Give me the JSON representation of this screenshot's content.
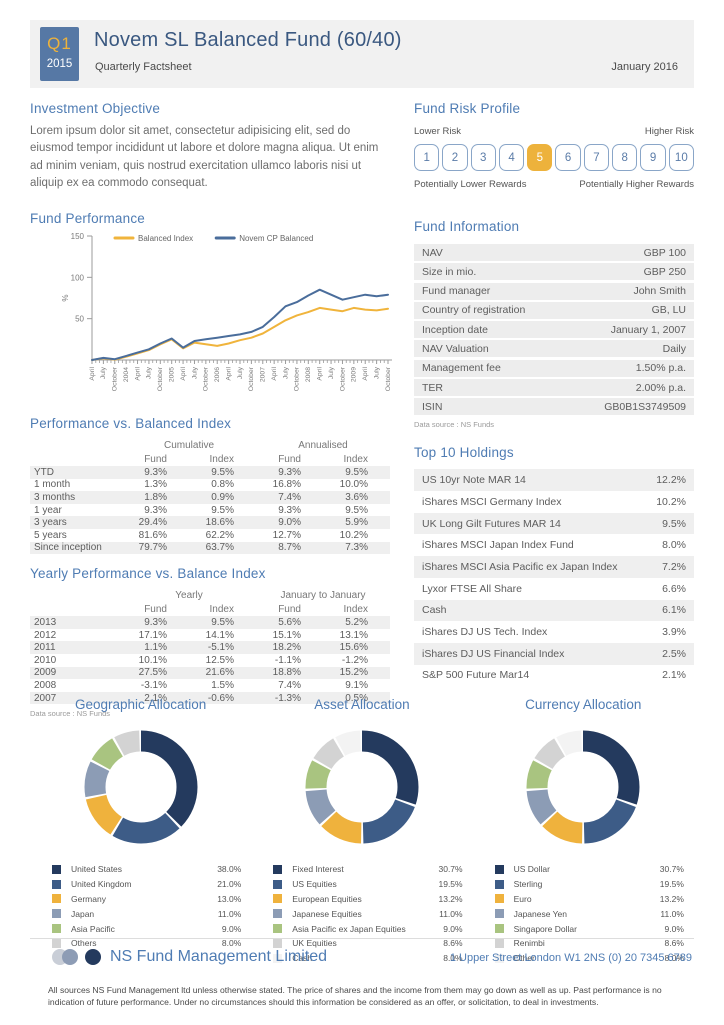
{
  "header": {
    "quarter": "Q1",
    "year": "2015",
    "title": "Novem SL Balanced Fund (60/40)",
    "subtitle": "Quarterly Factsheet",
    "date": "January 2016"
  },
  "investment_objective": {
    "heading": "Investment Objective",
    "text": "Lorem ipsum dolor sit amet, consectetur adipisicing elit, sed do eiusmod tempor incididunt ut labore et dolore magna aliqua. Ut enim ad minim veniam, quis nostrud exercitation ullamco laboris nisi ut aliquip ex ea commodo consequat."
  },
  "risk_profile": {
    "heading": "Fund Risk Profile",
    "lower_label": "Lower Risk",
    "higher_label": "Higher Risk",
    "levels": [
      "1",
      "2",
      "3",
      "4",
      "5",
      "6",
      "7",
      "8",
      "9",
      "10"
    ],
    "selected": "5",
    "lower_rewards": "Potentially Lower Rewards",
    "higher_rewards": "Potentially Higher Rewards"
  },
  "chart_data": {
    "type": "line",
    "title": "Fund Performance",
    "ylabel": "%",
    "ylim": [
      0,
      150
    ],
    "yticks": [
      50,
      100,
      150
    ],
    "grid": false,
    "legend_position": "top",
    "x": [
      "April",
      "July",
      "October",
      "2004",
      "April",
      "July",
      "October",
      "2005",
      "April",
      "July",
      "October",
      "2006",
      "April",
      "July",
      "October",
      "2007",
      "April",
      "July",
      "October",
      "2008",
      "April",
      "July",
      "October",
      "2009",
      "April",
      "July",
      "October"
    ],
    "series": [
      {
        "name": "Balanced Index",
        "color": "#f0b43c",
        "values": [
          0,
          2,
          0.5,
          4,
          8,
          12,
          19,
          25,
          14,
          21,
          19,
          17,
          20,
          24,
          27,
          32,
          40,
          48,
          54,
          58,
          63,
          61,
          59,
          63,
          61,
          60,
          62
        ]
      },
      {
        "name": "Novem CP Balanced",
        "color": "#4a6d9b",
        "values": [
          0,
          2.5,
          1,
          5,
          9,
          13,
          20,
          26,
          15,
          23,
          25,
          27,
          29,
          31,
          34,
          40,
          52,
          65,
          70,
          78,
          85,
          79,
          73,
          76,
          79,
          77,
          79
        ]
      }
    ]
  },
  "fund_information": {
    "heading": "Fund Information",
    "rows": [
      {
        "label": "NAV",
        "value": "GBP 100"
      },
      {
        "label": "Size in mio.",
        "value": "GBP 250"
      },
      {
        "label": "Fund manager",
        "value": "John Smith"
      },
      {
        "label": "Country of registration",
        "value": "GB, LU"
      },
      {
        "label": "Inception date",
        "value": "January 1, 2007"
      },
      {
        "label": "NAV Valuation",
        "value": "Daily"
      },
      {
        "label": "Management fee",
        "value": "1.50% p.a."
      },
      {
        "label": "TER",
        "value": "2.00% p.a."
      },
      {
        "label": "ISIN",
        "value": "GB0B1S3749509"
      }
    ],
    "source": "Data source : NS Funds"
  },
  "performance_table": {
    "heading": "Performance vs. Balanced Index",
    "group_headers": [
      "Cumulative",
      "Annualised"
    ],
    "col_headers": [
      "Fund",
      "Index",
      "Fund",
      "Index"
    ],
    "rows": [
      {
        "label": "YTD",
        "values": [
          "9.3%",
          "9.5%",
          "9.3%",
          "9.5%"
        ]
      },
      {
        "label": "1 month",
        "values": [
          "1.3%",
          "0.8%",
          "16.8%",
          "10.0%"
        ]
      },
      {
        "label": "3 months",
        "values": [
          "1.8%",
          "0.9%",
          "7.4%",
          "3.6%"
        ]
      },
      {
        "label": "1 year",
        "values": [
          "9.3%",
          "9.5%",
          "9.3%",
          "9.5%"
        ]
      },
      {
        "label": "3 years",
        "values": [
          "29.4%",
          "18.6%",
          "9.0%",
          "5.9%"
        ]
      },
      {
        "label": "5 years",
        "values": [
          "81.6%",
          "62.2%",
          "12.7%",
          "10.2%"
        ]
      },
      {
        "label": "Since inception",
        "values": [
          "79.7%",
          "63.7%",
          "8.7%",
          "7.3%"
        ]
      }
    ]
  },
  "yearly_table": {
    "heading": "Yearly Performance vs. Balance Index",
    "group_headers": [
      "Yearly",
      "January to January"
    ],
    "col_headers": [
      "Fund",
      "Index",
      "Fund",
      "Index"
    ],
    "rows": [
      {
        "label": "2013",
        "values": [
          "9.3%",
          "9.5%",
          "5.6%",
          "5.2%"
        ]
      },
      {
        "label": "2012",
        "values": [
          "17.1%",
          "14.1%",
          "15.1%",
          "13.1%"
        ]
      },
      {
        "label": "2011",
        "values": [
          "1.1%",
          "-5.1%",
          "18.2%",
          "15.6%"
        ]
      },
      {
        "label": "2010",
        "values": [
          "10.1%",
          "12.5%",
          "-1.1%",
          "-1.2%"
        ]
      },
      {
        "label": "2009",
        "values": [
          "27.5%",
          "21.6%",
          "18.8%",
          "15.2%"
        ]
      },
      {
        "label": "2008",
        "values": [
          "-3.1%",
          "1.5%",
          "7.4%",
          "9.1%"
        ]
      },
      {
        "label": "2007",
        "values": [
          "2.1%",
          "-0.6%",
          "-1.3%",
          "0.5%"
        ]
      }
    ],
    "source": "Data source : NS Funds"
  },
  "holdings": {
    "heading": "Top 10 Holdings",
    "rows": [
      {
        "name": "US 10yr Note MAR 14",
        "value": "12.2%"
      },
      {
        "name": "iShares MSCI Germany Index",
        "value": "10.2%"
      },
      {
        "name": "UK Long Gilt Futures MAR 14",
        "value": "9.5%"
      },
      {
        "name": "iShares MSCI Japan Index Fund",
        "value": "8.0%"
      },
      {
        "name": "iShares MSCI Asia Pacific ex Japan Index",
        "value": "7.2%"
      },
      {
        "name": "Lyxor FTSE All Share",
        "value": "6.6%"
      },
      {
        "name": "Cash",
        "value": "6.1%"
      },
      {
        "name": "iShares DJ US Tech. Index",
        "value": "3.9%"
      },
      {
        "name": "iShares DJ US Financial Index",
        "value": "2.5%"
      },
      {
        "name": "S&P 500 Future Mar14",
        "value": "2.1%"
      }
    ]
  },
  "allocations": [
    {
      "title": "Geographic Allocation",
      "type": "pie",
      "segments": [
        {
          "label": "United States",
          "value": 38.0,
          "display": "38.0%",
          "color": "#243a5e"
        },
        {
          "label": "United Kingdom",
          "value": 21.0,
          "display": "21.0%",
          "color": "#3d5c87"
        },
        {
          "label": "Germany",
          "value": 13.0,
          "display": "13.0%",
          "color": "#efb23d"
        },
        {
          "label": "Japan",
          "value": 11.0,
          "display": "11.0%",
          "color": "#8c9cb5"
        },
        {
          "label": "Asia Pacific",
          "value": 9.0,
          "display": "9.0%",
          "color": "#a9c480"
        },
        {
          "label": "Others",
          "value": 8.0,
          "display": "8.0%",
          "color": "#d3d3d3"
        }
      ]
    },
    {
      "title": "Asset Allocation",
      "type": "pie",
      "segments": [
        {
          "label": "Fixed Interest",
          "value": 30.7,
          "display": "30.7%",
          "color": "#243a5e"
        },
        {
          "label": "US Equities",
          "value": 19.5,
          "display": "19.5%",
          "color": "#3d5c87"
        },
        {
          "label": "European Equities",
          "value": 13.2,
          "display": "13.2%",
          "color": "#efb23d"
        },
        {
          "label": "Japanese Equities",
          "value": 11.0,
          "display": "11.0%",
          "color": "#8c9cb5"
        },
        {
          "label": "Asia Pacific ex Japan Equities",
          "value": 9.0,
          "display": "9.0%",
          "color": "#a9c480"
        },
        {
          "label": "UK Equities",
          "value": 8.6,
          "display": "8.6%",
          "color": "#d3d3d3"
        },
        {
          "label": "Cash",
          "value": 8.0,
          "display": "8.0%",
          "color": "#f3f3f3"
        }
      ]
    },
    {
      "title": "Currency Allocation",
      "type": "pie",
      "segments": [
        {
          "label": "US Dollar",
          "value": 30.7,
          "display": "30.7%",
          "color": "#243a5e"
        },
        {
          "label": "Sterling",
          "value": 19.5,
          "display": "19.5%",
          "color": "#3d5c87"
        },
        {
          "label": "Euro",
          "value": 13.2,
          "display": "13.2%",
          "color": "#efb23d"
        },
        {
          "label": "Japanese Yen",
          "value": 11.0,
          "display": "11.0%",
          "color": "#8c9cb5"
        },
        {
          "label": "Singapore Dollar",
          "value": 9.0,
          "display": "9.0%",
          "color": "#a9c480"
        },
        {
          "label": "Renimbi",
          "value": 8.6,
          "display": "8.6%",
          "color": "#d3d3d3"
        },
        {
          "label": "Other",
          "value": 8.0,
          "display": "8.0%",
          "color": "#f3f3f3"
        }
      ]
    }
  ],
  "footer": {
    "company": "NS Fund Management Limited",
    "address": "1 Upper Street London W1 2NS (0) 20 7345 6789",
    "disclaimer": "All sources NS Fund Management ltd unless otherwise stated. The price of shares and the income from them may go down as well as up. Past performance is no indication of future performance. Under no circumstances should this information be considered as an offer, or solicitation, to deal in investments."
  },
  "colors": {
    "accent_blue": "#4f7cb3",
    "title_blue": "#3a5880",
    "amber": "#edb23c",
    "header_bg": "#f1f1f1",
    "row_shade": "#efefef"
  }
}
